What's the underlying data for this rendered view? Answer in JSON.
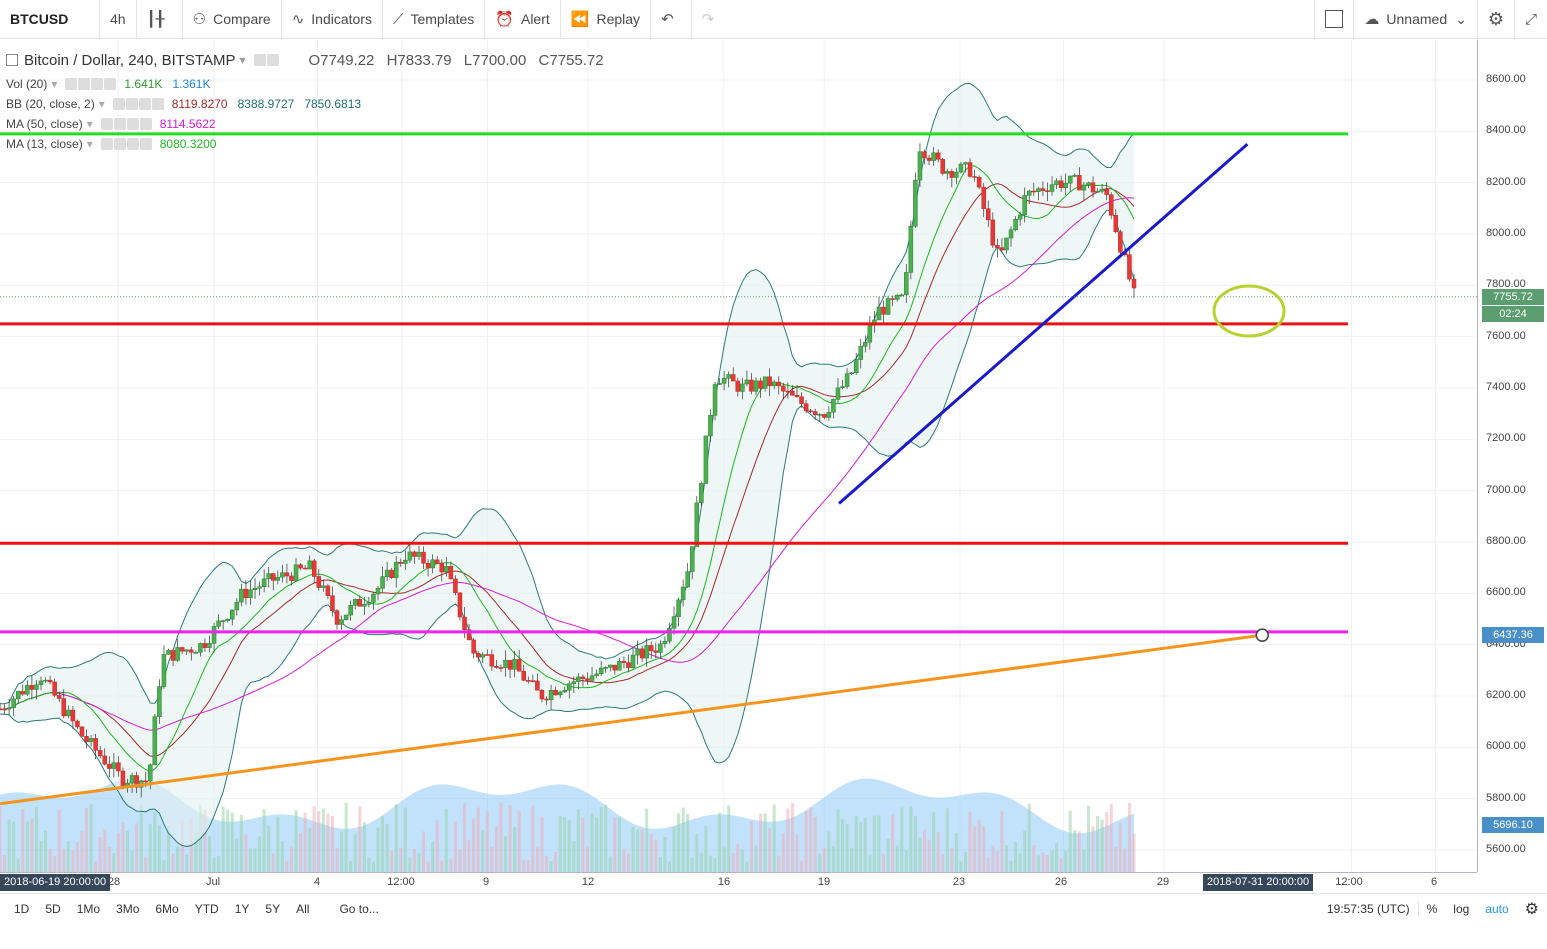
{
  "topbar": {
    "symbol": "BTCUSD",
    "interval": "4h",
    "compare": "Compare",
    "indicators": "Indicators",
    "templates": "Templates",
    "alert": "Alert",
    "replay": "Replay",
    "layout_name": "Unnamed"
  },
  "legend": {
    "title": "Bitcoin / Dollar, 240, BITSTAMP",
    "ohlc": {
      "o": "O7749.22",
      "h": "H7833.79",
      "l": "L7700.00",
      "c": "C7755.72"
    },
    "indicators": [
      {
        "label": "Vol (20)",
        "values": [
          {
            "v": "1.641K",
            "color": "#2e9b2e"
          },
          {
            "v": "1.361K",
            "color": "#1e88e5"
          }
        ]
      },
      {
        "label": "BB (20, close, 2)",
        "values": [
          {
            "v": "8119.8270",
            "color": "#a52a2a"
          },
          {
            "v": "8388.9727",
            "color": "#1f6e6e"
          },
          {
            "v": "7850.6813",
            "color": "#1f6e6e"
          }
        ]
      },
      {
        "label": "MA (50, close)",
        "values": [
          {
            "v": "8114.5622",
            "color": "#d81bd8"
          }
        ]
      },
      {
        "label": "MA (13, close)",
        "values": [
          {
            "v": "8080.3200",
            "color": "#1eb81e"
          }
        ]
      }
    ]
  },
  "price_scale": {
    "labels": [
      "8600.00",
      "8400.00",
      "8200.00",
      "8000.00",
      "7800.00",
      "7600.00",
      "7400.00",
      "7200.00",
      "7000.00",
      "6800.00",
      "6600.00",
      "6400.00",
      "6200.00",
      "6000.00",
      "5800.00",
      "5600.00"
    ],
    "tags": [
      {
        "text": "7755.72",
        "color": "#5a9e6f",
        "price": 7755.72
      },
      {
        "text": "02:24",
        "color": "#5a9e6f",
        "price": 7690
      },
      {
        "text": "6437.36",
        "color": "#4a90c8",
        "price": 6437.36
      },
      {
        "text": "5696.10",
        "color": "#4a90c8",
        "price": 5696.1
      }
    ]
  },
  "time_scale": {
    "start_tag": "2018-06-19 20:00:00",
    "end_tag": "2018-07-31 20:00:00",
    "labels": [
      "28",
      "Jul",
      "4",
      "12:00",
      "9",
      "12",
      "16",
      "19",
      "23",
      "26",
      "29",
      "12:00",
      "6"
    ]
  },
  "bottombar": {
    "ranges": [
      "1D",
      "5D",
      "1Mo",
      "3Mo",
      "6Mo",
      "YTD",
      "1Y",
      "5Y",
      "All"
    ],
    "goto": "Go to...",
    "clock": "19:57:35 (UTC)",
    "percent": "%",
    "log": "log",
    "auto": "auto"
  },
  "chart_data": {
    "type": "candlestick",
    "title": "Bitcoin / Dollar, 240, BITSTAMP",
    "ylim": [
      5500,
      8700
    ],
    "colors": {
      "up": "#53b987",
      "down": "#eb4d5c"
    },
    "horizontal_lines": [
      {
        "price": 8390,
        "color": "#22dd22"
      },
      {
        "price": 7650,
        "color": "#ee1111"
      },
      {
        "price": 6795,
        "color": "#ee1111"
      },
      {
        "price": 6450,
        "color": "#ee22ee"
      }
    ],
    "trend_lines": [
      {
        "from": [
          0.0,
          5780
        ],
        "to": [
          0.85,
          6437
        ],
        "color": "#f7941d"
      },
      {
        "from": [
          0.565,
          6950
        ],
        "to": [
          0.84,
          8350
        ],
        "color": "#1a1acc"
      }
    ],
    "close_path": [
      [
        0.0,
        6150
      ],
      [
        0.03,
        6280
      ],
      [
        0.06,
        6050
      ],
      [
        0.09,
        5880
      ],
      [
        0.11,
        5870
      ],
      [
        0.12,
        6350
      ],
      [
        0.15,
        6400
      ],
      [
        0.18,
        6600
      ],
      [
        0.2,
        6650
      ],
      [
        0.23,
        6700
      ],
      [
        0.25,
        6500
      ],
      [
        0.28,
        6620
      ],
      [
        0.3,
        6750
      ],
      [
        0.33,
        6700
      ],
      [
        0.35,
        6370
      ],
      [
        0.38,
        6320
      ],
      [
        0.4,
        6200
      ],
      [
        0.42,
        6250
      ],
      [
        0.45,
        6300
      ],
      [
        0.47,
        6350
      ],
      [
        0.49,
        6400
      ],
      [
        0.51,
        6700
      ],
      [
        0.53,
        7450
      ],
      [
        0.55,
        7400
      ],
      [
        0.57,
        7420
      ],
      [
        0.59,
        7350
      ],
      [
        0.61,
        7300
      ],
      [
        0.63,
        7450
      ],
      [
        0.65,
        7700
      ],
      [
        0.67,
        7750
      ],
      [
        0.68,
        8350
      ],
      [
        0.7,
        8250
      ],
      [
        0.72,
        8250
      ],
      [
        0.74,
        7900
      ],
      [
        0.76,
        8150
      ],
      [
        0.78,
        8200
      ],
      [
        0.8,
        8200
      ],
      [
        0.82,
        8150
      ],
      [
        0.84,
        7760
      ]
    ],
    "volume_envelope": [
      5696,
      5720,
      5700,
      5680,
      5720,
      5700,
      5690,
      5700,
      5690,
      5710
    ]
  }
}
